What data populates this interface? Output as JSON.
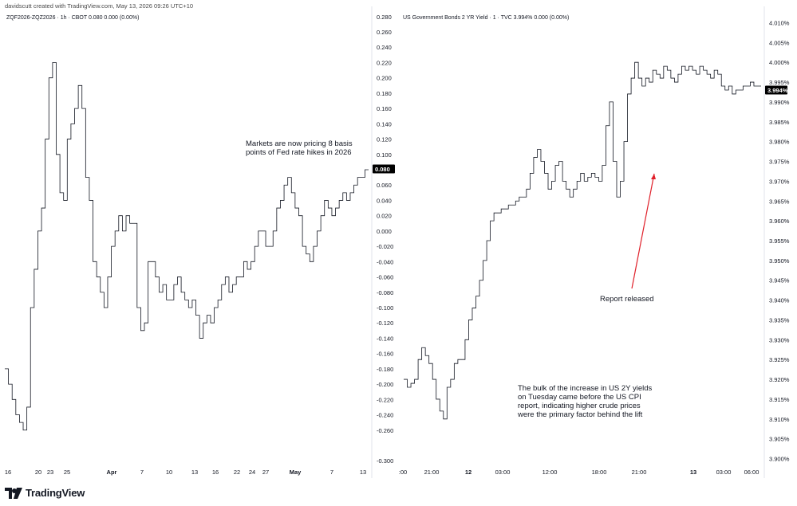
{
  "header": {
    "credit": "davidscutt created with TradingView.com, May 13, 2026 09:26 UTC+10"
  },
  "footer": {
    "brand": "TradingView",
    "logo_icon": "tradingview-logo-icon"
  },
  "colors": {
    "line": "#131722",
    "badge_bg": "#000000",
    "badge_text": "#ffffff",
    "arrow": "#e0202a",
    "grid": "#e9e9ec"
  },
  "chart_data": [
    {
      "type": "line",
      "title": "ZQF2026-ZQZ2026 · 1h · CBOT  0.080  0.000 (0.00%)",
      "y_axis_position": "right",
      "ylim": [
        -0.305,
        0.285
      ],
      "y_ticks": [
        "0.280",
        "0.260",
        "0.240",
        "0.220",
        "0.200",
        "0.180",
        "0.160",
        "0.140",
        "0.120",
        "0.100",
        "0.080",
        "0.060",
        "0.040",
        "0.020",
        "0.000",
        "-0.020",
        "-0.040",
        "-0.060",
        "-0.080",
        "-0.100",
        "-0.120",
        "-0.140",
        "-0.160",
        "-0.180",
        "-0.200",
        "-0.220",
        "-0.240",
        "-0.260",
        "-0.300"
      ],
      "x_ticks": [
        "16",
        "20",
        "23",
        "25",
        "Apr",
        "7",
        "10",
        "13",
        "16",
        "22",
        "24",
        "27",
        "May",
        "7",
        "13"
      ],
      "x_tick_bold": [
        "Apr",
        "May"
      ],
      "last_value_label": "0.080",
      "annotations": [
        {
          "text": "Markets are now pricing 8 basis\npoints of Fed rate hikes in 2026",
          "anchor": "upper-right"
        }
      ],
      "x": [
        0,
        2,
        4,
        6,
        8,
        10,
        12,
        14,
        16,
        18,
        20,
        22,
        24,
        26,
        28,
        30,
        32,
        34,
        36,
        38,
        40,
        42,
        44,
        46,
        48,
        50,
        52,
        54,
        56,
        58,
        60,
        62,
        64,
        66,
        68,
        70,
        72,
        74,
        76,
        78,
        80,
        82,
        84,
        86,
        88,
        90,
        92,
        94,
        96,
        98,
        100,
        102,
        104,
        106,
        108,
        110,
        112,
        114,
        116,
        118,
        120,
        122,
        124,
        126,
        128,
        130,
        132,
        134,
        136,
        138,
        140,
        142,
        144,
        146,
        148,
        150,
        152,
        154,
        156,
        158,
        160,
        162,
        164,
        166,
        168,
        170,
        172,
        174,
        176,
        178,
        180,
        182,
        184,
        186,
        188,
        190,
        192,
        194,
        196,
        198
      ],
      "values": [
        -0.18,
        -0.2,
        -0.22,
        -0.24,
        -0.25,
        -0.26,
        -0.23,
        -0.1,
        -0.05,
        0.0,
        0.03,
        0.12,
        0.2,
        0.22,
        0.1,
        0.05,
        0.04,
        0.12,
        0.14,
        0.16,
        0.19,
        0.16,
        0.07,
        0.04,
        -0.04,
        -0.06,
        -0.08,
        -0.1,
        -0.06,
        -0.02,
        0.0,
        0.02,
        0.0,
        0.02,
        0.01,
        0.01,
        -0.1,
        -0.13,
        -0.12,
        -0.04,
        -0.04,
        -0.06,
        -0.08,
        -0.07,
        -0.09,
        -0.09,
        -0.07,
        -0.06,
        -0.08,
        -0.09,
        -0.1,
        -0.09,
        -0.11,
        -0.14,
        -0.12,
        -0.11,
        -0.12,
        -0.1,
        -0.09,
        -0.07,
        -0.06,
        -0.08,
        -0.07,
        -0.06,
        -0.06,
        -0.04,
        -0.05,
        -0.04,
        -0.02,
        0.0,
        0.0,
        -0.02,
        -0.02,
        0.0,
        0.03,
        0.04,
        0.06,
        0.07,
        0.05,
        0.03,
        0.02,
        -0.02,
        -0.03,
        -0.04,
        -0.02,
        0.0,
        0.02,
        0.04,
        0.03,
        0.02,
        0.03,
        0.04,
        0.05,
        0.04,
        0.05,
        0.06,
        0.07,
        0.07,
        0.08,
        0.08
      ]
    },
    {
      "type": "line",
      "title": "US Government Bonds 2 YR Yield · 1 · TVC  3.994%  0.000 (0.00%)",
      "y_axis_position": "right",
      "ylim": [
        3.8985,
        4.0125
      ],
      "y_ticks": [
        "4.010%",
        "4.005%",
        "4.000%",
        "3.995%",
        "3.990%",
        "3.985%",
        "3.980%",
        "3.975%",
        "3.970%",
        "3.965%",
        "3.960%",
        "3.955%",
        "3.950%",
        "3.945%",
        "3.940%",
        "3.935%",
        "3.930%",
        "3.925%",
        "3.920%",
        "3.915%",
        "3.910%",
        "3.905%",
        "3.900%"
      ],
      "x_ticks": [
        ":00",
        "21:00",
        "12",
        "03:00",
        "12:00",
        "18:00",
        "21:00",
        "13",
        "03:00",
        "06:00"
      ],
      "x_tick_bold": [
        "12",
        "13"
      ],
      "last_value_label": "3.994%",
      "annotations": [
        {
          "text": "Report released",
          "anchor": "middle-right"
        },
        {
          "text": "The bulk of the increase in US 2Y yields\non Tuesday came before the US CPI\nreport, indicating higher crude prices\nwere the primary factor behind the lift",
          "anchor": "lower-middle"
        }
      ],
      "x": [
        0,
        2,
        4,
        6,
        8,
        10,
        12,
        14,
        16,
        18,
        20,
        22,
        24,
        26,
        28,
        30,
        32,
        34,
        36,
        38,
        40,
        42,
        44,
        46,
        48,
        50,
        52,
        54,
        56,
        58,
        60,
        62,
        64,
        66,
        68,
        70,
        72,
        74,
        76,
        78,
        80,
        82,
        84,
        86,
        88,
        90,
        92,
        94,
        96,
        98,
        100,
        102,
        104,
        106,
        108,
        110,
        112,
        114,
        116,
        118,
        120,
        122,
        124,
        126,
        128,
        130,
        132,
        134,
        136,
        138,
        140,
        142,
        144,
        146,
        148,
        150,
        152,
        154,
        156,
        158,
        160,
        162,
        164,
        166,
        168,
        170,
        172,
        174,
        176,
        178,
        180,
        182,
        184,
        186,
        188,
        190,
        192,
        194,
        196,
        198
      ],
      "values": [
        3.92,
        3.918,
        3.919,
        3.92,
        3.925,
        3.928,
        3.926,
        3.924,
        3.92,
        3.915,
        3.912,
        3.91,
        3.918,
        3.92,
        3.924,
        3.925,
        3.925,
        3.93,
        3.935,
        3.938,
        3.941,
        3.945,
        3.95,
        3.955,
        3.96,
        3.962,
        3.962,
        3.963,
        3.963,
        3.964,
        3.964,
        3.965,
        3.966,
        3.966,
        3.968,
        3.972,
        3.976,
        3.978,
        3.975,
        3.972,
        3.968,
        3.97,
        3.974,
        3.975,
        3.97,
        3.968,
        3.966,
        3.968,
        3.97,
        3.972,
        3.97,
        3.971,
        3.972,
        3.971,
        3.97,
        3.974,
        3.984,
        3.99,
        3.975,
        3.966,
        3.97,
        3.98,
        3.992,
        3.996,
        4.0,
        3.996,
        3.994,
        3.996,
        3.995,
        3.998,
        3.997,
        3.996,
        3.999,
        3.998,
        3.996,
        3.995,
        3.997,
        3.999,
        3.998,
        3.999,
        3.998,
        3.997,
        3.999,
        3.998,
        3.997,
        3.996,
        3.998,
        3.997,
        3.994,
        3.993,
        3.994,
        3.992,
        3.993,
        3.993,
        3.994,
        3.994,
        3.995,
        3.994,
        3.994,
        3.994
      ]
    }
  ]
}
